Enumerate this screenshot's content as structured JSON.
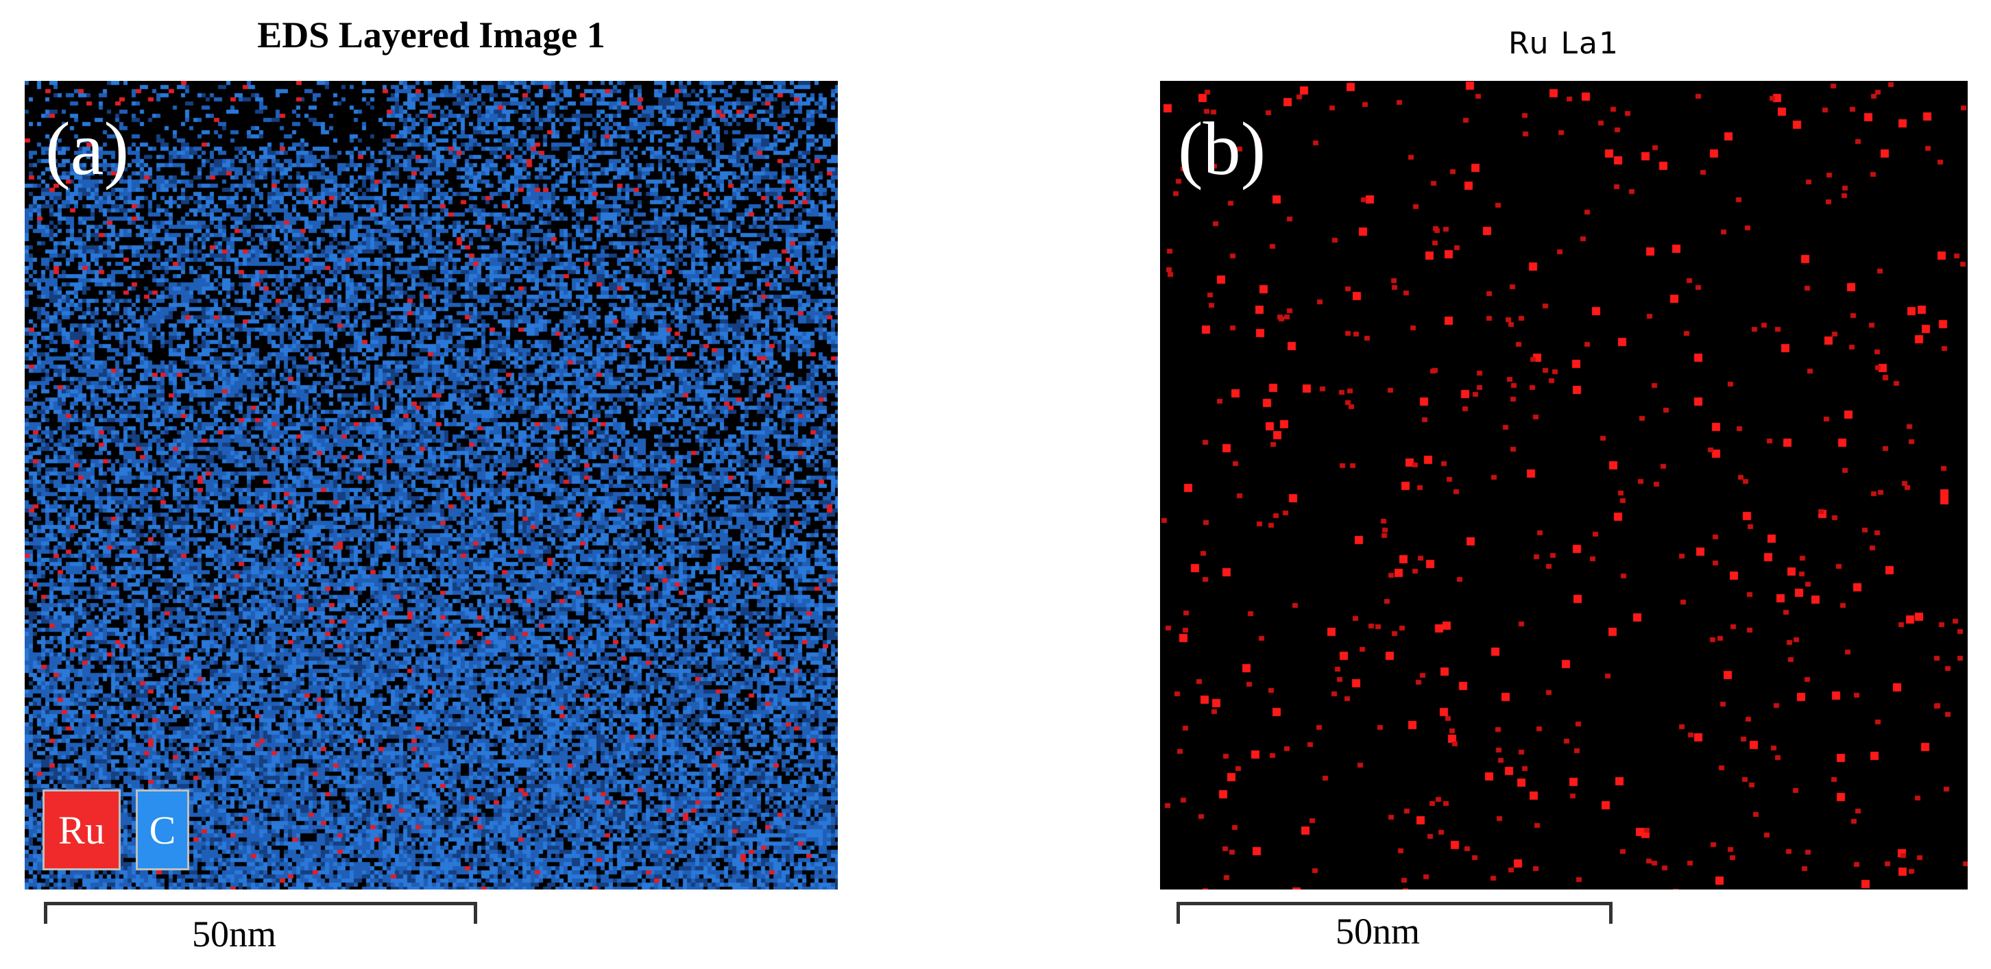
{
  "panel_a": {
    "title": "EDS Layered Image 1",
    "label": "(a)",
    "legend": [
      {
        "label": "Ru",
        "color": "#f02a2a"
      },
      {
        "label": "C",
        "color": "#2a8fee"
      }
    ],
    "scale_label": "50nm",
    "background": "#000000",
    "map_colors": [
      "#1f5fb8",
      "#2a78d8",
      "#153f80",
      "#e01e2a"
    ]
  },
  "panel_b": {
    "title": "Ru  La1",
    "label": "(b)",
    "scale_label": "50nm",
    "background": "#000000",
    "map_colors": [
      "#ff1a1a",
      "#c81010"
    ]
  }
}
